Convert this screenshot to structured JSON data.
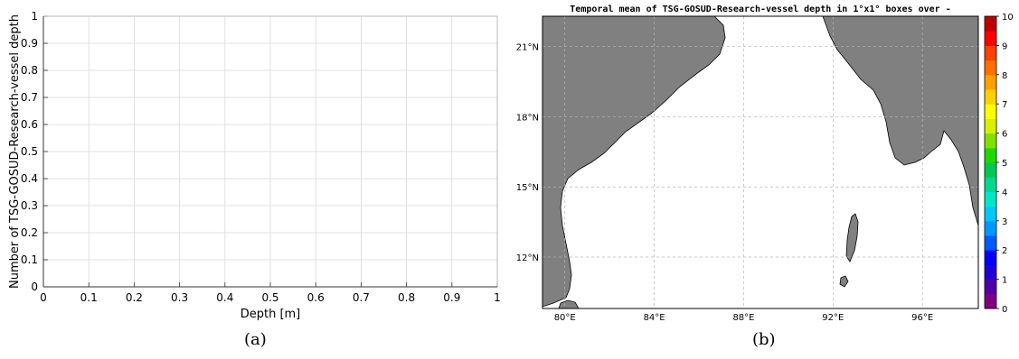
{
  "captions": [
    "(a)",
    "(b)"
  ],
  "chart_data": [
    {
      "type": "line",
      "title": "",
      "xlabel": "Depth [m]",
      "ylabel": "Number of TSG-GOSUD-Research-vessel depth",
      "xlim": [
        0,
        1
      ],
      "ylim": [
        0,
        1
      ],
      "xticks": [
        "0",
        "0.1",
        "0.2",
        "0.3",
        "0.4",
        "0.5",
        "0.6",
        "0.7",
        "0.8",
        "0.9",
        "1"
      ],
      "yticks": [
        "0",
        "0.1",
        "0.2",
        "0.3",
        "0.4",
        "0.5",
        "0.6",
        "0.7",
        "0.8",
        "0.9",
        "1"
      ],
      "grid": true,
      "series": []
    },
    {
      "type": "heatmap",
      "title": "Temporal mean of TSG-GOSUD-Research-vessel depth in 1°x1° boxes over -",
      "xlabel": "",
      "ylabel": "",
      "xlim": [
        79,
        98.5
      ],
      "ylim": [
        9.8,
        22.3
      ],
      "xticks": [
        {
          "value": 80,
          "label": "80°E"
        },
        {
          "value": 84,
          "label": "84°E"
        },
        {
          "value": 88,
          "label": "88°E"
        },
        {
          "value": 92,
          "label": "92°E"
        },
        {
          "value": 96,
          "label": "96°E"
        }
      ],
      "yticks": [
        {
          "value": 12,
          "label": "12°N"
        },
        {
          "value": 15,
          "label": "15°N"
        },
        {
          "value": 18,
          "label": "18°N"
        },
        {
          "value": 21,
          "label": "21°N"
        }
      ],
      "grid": true,
      "land_color": "#808080",
      "ocean_color": "#ffffff",
      "colorbar": {
        "min": 0,
        "max": 10,
        "ticks": [
          "0",
          "1",
          "2",
          "3",
          "4",
          "5",
          "6",
          "7",
          "8",
          "9",
          "10"
        ],
        "colors": [
          "#800080",
          "#5000a8",
          "#2000d8",
          "#0000ff",
          "#0058ff",
          "#0098ff",
          "#00c8ff",
          "#00e8c8",
          "#00d890",
          "#00c850",
          "#20d800",
          "#80e000",
          "#d8f000",
          "#ffff00",
          "#ffd000",
          "#ffa000",
          "#ff7000",
          "#ff4000",
          "#ff0000",
          "#c00000"
        ]
      },
      "values": []
    }
  ]
}
